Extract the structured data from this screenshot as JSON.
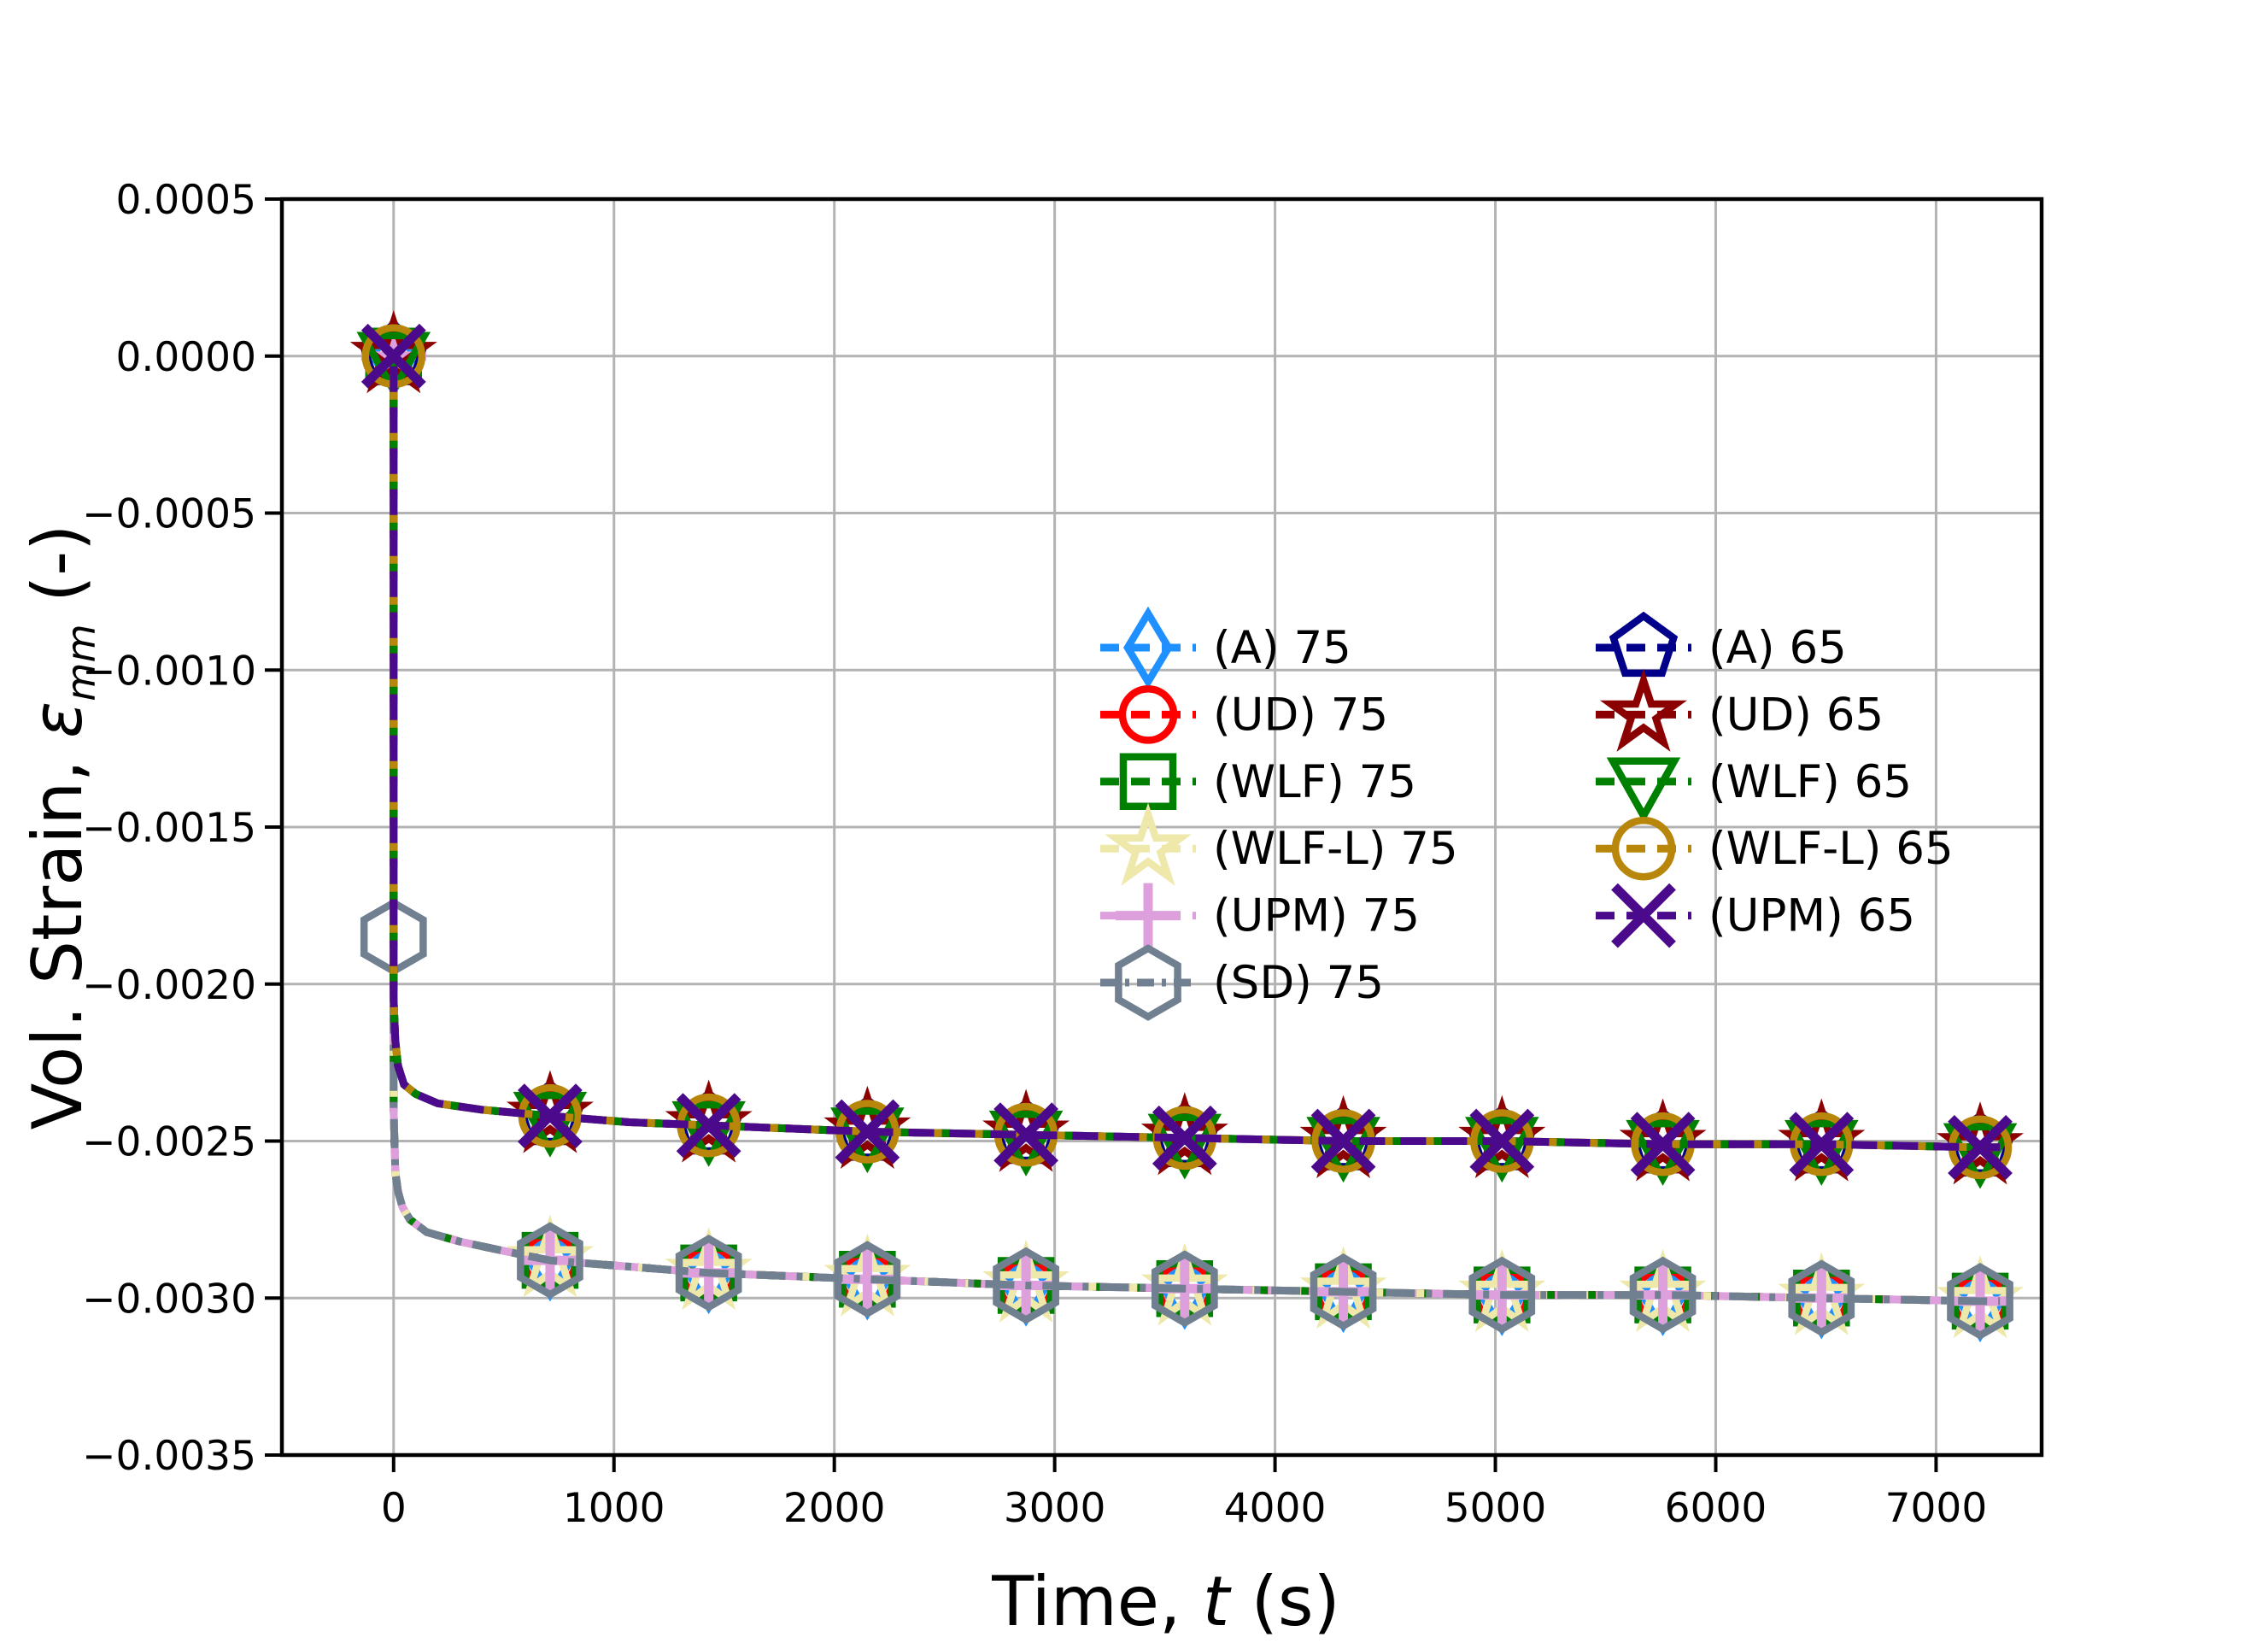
{
  "figure": {
    "background": "#FFFFFF"
  },
  "axes": {
    "xlabel": {
      "pre": "Time, ",
      "var": "t",
      "post": " (s)"
    },
    "ylabel": {
      "pre": "Vol. Strain, ",
      "var": "ε",
      "sub": "mm",
      "post": " (-)"
    }
  },
  "chart_data": {
    "type": "line",
    "title": "",
    "xlabel": "Time, t (s)",
    "ylabel": "Vol. Strain, ε_mm (-)",
    "xlim": [
      -507,
      7479
    ],
    "ylim": [
      -0.0035,
      0.0005
    ],
    "grid": true,
    "grid_color": "#B3B3B3",
    "legend_position": "center-right, two columns, no frame",
    "x_ticks": {
      "values": [
        0,
        1000,
        2000,
        3000,
        4000,
        5000,
        6000,
        7000
      ],
      "labels": [
        "0",
        "1000",
        "2000",
        "3000",
        "4000",
        "5000",
        "6000",
        "7000"
      ]
    },
    "y_ticks": {
      "values": [
        0.0005,
        0.0,
        -0.0005,
        -0.001,
        -0.0015,
        -0.002,
        -0.0025,
        -0.003,
        -0.0035
      ],
      "labels": [
        "0.0005",
        "0.0000",
        "−0.0005",
        "−0.0010",
        "−0.0015",
        "−0.0020",
        "−0.0025",
        "−0.0030",
        "−0.0035"
      ]
    },
    "curves": {
      "c65": [
        [
          0,
          0
        ],
        [
          0,
          -0.00205
        ],
        [
          8,
          -0.00218
        ],
        [
          20,
          -0.00226
        ],
        [
          47,
          -0.00232
        ],
        [
          100,
          -0.00235
        ],
        [
          200,
          -0.00238
        ],
        [
          400,
          -0.0024
        ],
        [
          710,
          -0.00242
        ],
        [
          1070,
          -0.00244
        ],
        [
          1430,
          -0.00245
        ],
        [
          1790,
          -0.00246
        ],
        [
          2150,
          -0.00247
        ],
        [
          2870,
          -0.00248
        ],
        [
          3590,
          -0.00249
        ],
        [
          4310,
          -0.0025
        ],
        [
          5030,
          -0.0025
        ],
        [
          5760,
          -0.00251
        ],
        [
          6480,
          -0.00251
        ],
        [
          7200,
          -0.00252
        ],
        [
          7290,
          -0.00252
        ]
      ],
      "c75": [
        [
          0,
          0
        ],
        [
          0,
          -0.0024
        ],
        [
          8,
          -0.0026
        ],
        [
          20,
          -0.00266
        ],
        [
          40,
          -0.00271
        ],
        [
          74,
          -0.00275
        ],
        [
          150,
          -0.00279
        ],
        [
          300,
          -0.00282
        ],
        [
          500,
          -0.00285
        ],
        [
          710,
          -0.00288
        ],
        [
          1070,
          -0.0029
        ],
        [
          1430,
          -0.00292
        ],
        [
          1790,
          -0.00293
        ],
        [
          2150,
          -0.00294
        ],
        [
          2870,
          -0.00296
        ],
        [
          3590,
          -0.00297
        ],
        [
          4310,
          -0.00298
        ],
        [
          5030,
          -0.00299
        ],
        [
          5760,
          -0.00299
        ],
        [
          6480,
          -0.003
        ],
        [
          7200,
          -0.00301
        ],
        [
          7290,
          -0.00301
        ]
      ]
    },
    "marker_sets": {
      "m75": {
        "t": [
          0,
          710,
          1430,
          2150,
          2870,
          3590,
          4310,
          5030,
          5760,
          6480,
          7200
        ],
        "v": [
          0,
          -0.00288,
          -0.00292,
          -0.00294,
          -0.00296,
          -0.00297,
          -0.00298,
          -0.00299,
          -0.00299,
          -0.003,
          -0.00301
        ]
      },
      "m75sd": {
        "t": [
          0,
          710,
          1430,
          2150,
          2870,
          3590,
          4310,
          5030,
          5760,
          6480,
          7200
        ],
        "v": [
          -0.00185,
          -0.00288,
          -0.00292,
          -0.00294,
          -0.00296,
          -0.00297,
          -0.00298,
          -0.00299,
          -0.00299,
          -0.003,
          -0.00301
        ]
      },
      "m65": {
        "t": [
          0,
          710,
          1430,
          2150,
          2870,
          3590,
          4310,
          5030,
          5760,
          6480,
          7200
        ],
        "v": [
          0,
          -0.00242,
          -0.00245,
          -0.00247,
          -0.00248,
          -0.00249,
          -0.0025,
          -0.0025,
          -0.00251,
          -0.00251,
          -0.00252
        ]
      }
    },
    "series": [
      {
        "id": "A75",
        "label": "(A) 75",
        "color": "#1E90FF",
        "style": "dashed",
        "marker": "thin-diamond",
        "curve": "c75",
        "marker_set": "m75"
      },
      {
        "id": "UD75",
        "label": "(UD) 75",
        "color": "#FF0000",
        "style": "dashed",
        "marker": "circle",
        "curve": "c75",
        "marker_set": "m75"
      },
      {
        "id": "WLF75",
        "label": "(WLF) 75",
        "color": "#008000",
        "style": "dashed",
        "marker": "square",
        "curve": "c75",
        "marker_set": "m75"
      },
      {
        "id": "WLFL75",
        "label": "(WLF-L) 75",
        "color": "#EEE8AA",
        "style": "dashed",
        "marker": "star",
        "curve": "c75",
        "marker_set": "m75"
      },
      {
        "id": "UPM75",
        "label": "(UPM) 75",
        "color": "#DDA0DD",
        "style": "dashed",
        "marker": "plus",
        "curve": "c75",
        "marker_set": "m75"
      },
      {
        "id": "SD75",
        "label": "(SD) 75",
        "color": "#708090",
        "style": "dashdot",
        "marker": "hexagon",
        "curve": "c75",
        "marker_set": "m75sd"
      },
      {
        "id": "A65",
        "label": "(A) 65",
        "color": "#00008B",
        "style": "dashed",
        "marker": "pentagon",
        "curve": "c65",
        "marker_set": "m65"
      },
      {
        "id": "UD65",
        "label": "(UD) 65",
        "color": "#8B0000",
        "style": "dashed",
        "marker": "star",
        "curve": "c65",
        "marker_set": "m65"
      },
      {
        "id": "WLF65",
        "label": "(WLF) 65",
        "color": "#008000",
        "style": "dashed",
        "marker": "triangle-down",
        "curve": "c65",
        "marker_set": "m65"
      },
      {
        "id": "WLFL65",
        "label": "(WLF-L) 65",
        "color": "#B8860B",
        "style": "dashed",
        "marker": "circle-large",
        "curve": "c65",
        "marker_set": "m65"
      },
      {
        "id": "UPM65",
        "label": "(UPM) 65",
        "color": "#4B0A8C",
        "style": "dashed",
        "marker": "x",
        "curve": "c65",
        "marker_set": "m65"
      }
    ],
    "legend": {
      "columns": [
        [
          0,
          1,
          2,
          3,
          4,
          5
        ],
        [
          6,
          7,
          8,
          9,
          10
        ]
      ]
    }
  }
}
